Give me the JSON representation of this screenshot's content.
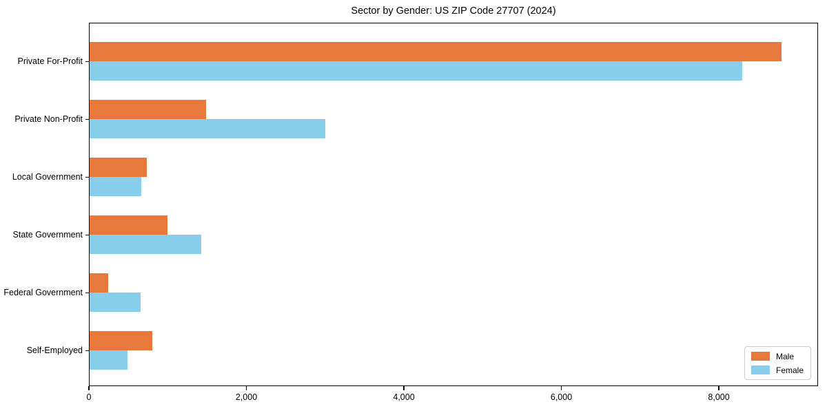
{
  "chart_data": {
    "type": "bar",
    "orientation": "horizontal",
    "title": "Sector by Gender: US ZIP Code 27707 (2024)",
    "categories": [
      "Private For-Profit",
      "Private Non-Profit",
      "Local Government",
      "State Government",
      "Federal Government",
      "Self-Employed"
    ],
    "series": [
      {
        "name": "Male",
        "color": "#E8793C",
        "values": [
          8800,
          1480,
          730,
          990,
          240,
          800
        ]
      },
      {
        "name": "Female",
        "color": "#87CEEB",
        "values": [
          8300,
          3000,
          660,
          1420,
          650,
          480
        ]
      }
    ],
    "xlabel": "",
    "ylabel": "",
    "xlim": [
      0,
      9260
    ],
    "xticks": [
      0,
      2000,
      4000,
      6000,
      8000
    ],
    "xtick_labels": [
      "0",
      "2,000",
      "4,000",
      "6,000",
      "8,000"
    ],
    "grid": false,
    "legend_position": "lower right",
    "colors": {
      "axis": "#000000",
      "background": "#ffffff",
      "legend_border": "#cccccc"
    }
  }
}
